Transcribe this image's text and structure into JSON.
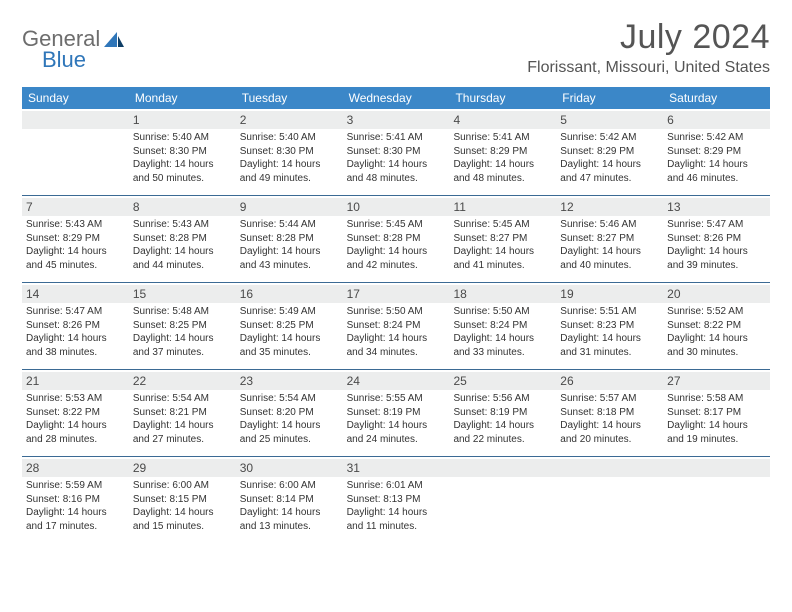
{
  "brand": {
    "part1": "General",
    "part2": "Blue"
  },
  "title": "July 2024",
  "location": "Florissant, Missouri, United States",
  "colors": {
    "header_bg": "#3b87c8",
    "header_text": "#ffffff",
    "band_bg": "#eceded",
    "rule": "#3b6a94",
    "logo_gray": "#6d6d6d",
    "logo_blue": "#2f76b9",
    "text": "#333333",
    "background": "#ffffff"
  },
  "font": {
    "family": "Arial",
    "title_size_pt": 26,
    "location_size_pt": 12,
    "header_size_pt": 9,
    "cell_size_pt": 7.5
  },
  "day_headers": [
    "Sunday",
    "Monday",
    "Tuesday",
    "Wednesday",
    "Thursday",
    "Friday",
    "Saturday"
  ],
  "weeks": [
    [
      {
        "n": "",
        "sunrise": "",
        "sunset": "",
        "daylight": ""
      },
      {
        "n": "1",
        "sunrise": "Sunrise: 5:40 AM",
        "sunset": "Sunset: 8:30 PM",
        "daylight": "Daylight: 14 hours and 50 minutes."
      },
      {
        "n": "2",
        "sunrise": "Sunrise: 5:40 AM",
        "sunset": "Sunset: 8:30 PM",
        "daylight": "Daylight: 14 hours and 49 minutes."
      },
      {
        "n": "3",
        "sunrise": "Sunrise: 5:41 AM",
        "sunset": "Sunset: 8:30 PM",
        "daylight": "Daylight: 14 hours and 48 minutes."
      },
      {
        "n": "4",
        "sunrise": "Sunrise: 5:41 AM",
        "sunset": "Sunset: 8:29 PM",
        "daylight": "Daylight: 14 hours and 48 minutes."
      },
      {
        "n": "5",
        "sunrise": "Sunrise: 5:42 AM",
        "sunset": "Sunset: 8:29 PM",
        "daylight": "Daylight: 14 hours and 47 minutes."
      },
      {
        "n": "6",
        "sunrise": "Sunrise: 5:42 AM",
        "sunset": "Sunset: 8:29 PM",
        "daylight": "Daylight: 14 hours and 46 minutes."
      }
    ],
    [
      {
        "n": "7",
        "sunrise": "Sunrise: 5:43 AM",
        "sunset": "Sunset: 8:29 PM",
        "daylight": "Daylight: 14 hours and 45 minutes."
      },
      {
        "n": "8",
        "sunrise": "Sunrise: 5:43 AM",
        "sunset": "Sunset: 8:28 PM",
        "daylight": "Daylight: 14 hours and 44 minutes."
      },
      {
        "n": "9",
        "sunrise": "Sunrise: 5:44 AM",
        "sunset": "Sunset: 8:28 PM",
        "daylight": "Daylight: 14 hours and 43 minutes."
      },
      {
        "n": "10",
        "sunrise": "Sunrise: 5:45 AM",
        "sunset": "Sunset: 8:28 PM",
        "daylight": "Daylight: 14 hours and 42 minutes."
      },
      {
        "n": "11",
        "sunrise": "Sunrise: 5:45 AM",
        "sunset": "Sunset: 8:27 PM",
        "daylight": "Daylight: 14 hours and 41 minutes."
      },
      {
        "n": "12",
        "sunrise": "Sunrise: 5:46 AM",
        "sunset": "Sunset: 8:27 PM",
        "daylight": "Daylight: 14 hours and 40 minutes."
      },
      {
        "n": "13",
        "sunrise": "Sunrise: 5:47 AM",
        "sunset": "Sunset: 8:26 PM",
        "daylight": "Daylight: 14 hours and 39 minutes."
      }
    ],
    [
      {
        "n": "14",
        "sunrise": "Sunrise: 5:47 AM",
        "sunset": "Sunset: 8:26 PM",
        "daylight": "Daylight: 14 hours and 38 minutes."
      },
      {
        "n": "15",
        "sunrise": "Sunrise: 5:48 AM",
        "sunset": "Sunset: 8:25 PM",
        "daylight": "Daylight: 14 hours and 37 minutes."
      },
      {
        "n": "16",
        "sunrise": "Sunrise: 5:49 AM",
        "sunset": "Sunset: 8:25 PM",
        "daylight": "Daylight: 14 hours and 35 minutes."
      },
      {
        "n": "17",
        "sunrise": "Sunrise: 5:50 AM",
        "sunset": "Sunset: 8:24 PM",
        "daylight": "Daylight: 14 hours and 34 minutes."
      },
      {
        "n": "18",
        "sunrise": "Sunrise: 5:50 AM",
        "sunset": "Sunset: 8:24 PM",
        "daylight": "Daylight: 14 hours and 33 minutes."
      },
      {
        "n": "19",
        "sunrise": "Sunrise: 5:51 AM",
        "sunset": "Sunset: 8:23 PM",
        "daylight": "Daylight: 14 hours and 31 minutes."
      },
      {
        "n": "20",
        "sunrise": "Sunrise: 5:52 AM",
        "sunset": "Sunset: 8:22 PM",
        "daylight": "Daylight: 14 hours and 30 minutes."
      }
    ],
    [
      {
        "n": "21",
        "sunrise": "Sunrise: 5:53 AM",
        "sunset": "Sunset: 8:22 PM",
        "daylight": "Daylight: 14 hours and 28 minutes."
      },
      {
        "n": "22",
        "sunrise": "Sunrise: 5:54 AM",
        "sunset": "Sunset: 8:21 PM",
        "daylight": "Daylight: 14 hours and 27 minutes."
      },
      {
        "n": "23",
        "sunrise": "Sunrise: 5:54 AM",
        "sunset": "Sunset: 8:20 PM",
        "daylight": "Daylight: 14 hours and 25 minutes."
      },
      {
        "n": "24",
        "sunrise": "Sunrise: 5:55 AM",
        "sunset": "Sunset: 8:19 PM",
        "daylight": "Daylight: 14 hours and 24 minutes."
      },
      {
        "n": "25",
        "sunrise": "Sunrise: 5:56 AM",
        "sunset": "Sunset: 8:19 PM",
        "daylight": "Daylight: 14 hours and 22 minutes."
      },
      {
        "n": "26",
        "sunrise": "Sunrise: 5:57 AM",
        "sunset": "Sunset: 8:18 PM",
        "daylight": "Daylight: 14 hours and 20 minutes."
      },
      {
        "n": "27",
        "sunrise": "Sunrise: 5:58 AM",
        "sunset": "Sunset: 8:17 PM",
        "daylight": "Daylight: 14 hours and 19 minutes."
      }
    ],
    [
      {
        "n": "28",
        "sunrise": "Sunrise: 5:59 AM",
        "sunset": "Sunset: 8:16 PM",
        "daylight": "Daylight: 14 hours and 17 minutes."
      },
      {
        "n": "29",
        "sunrise": "Sunrise: 6:00 AM",
        "sunset": "Sunset: 8:15 PM",
        "daylight": "Daylight: 14 hours and 15 minutes."
      },
      {
        "n": "30",
        "sunrise": "Sunrise: 6:00 AM",
        "sunset": "Sunset: 8:14 PM",
        "daylight": "Daylight: 14 hours and 13 minutes."
      },
      {
        "n": "31",
        "sunrise": "Sunrise: 6:01 AM",
        "sunset": "Sunset: 8:13 PM",
        "daylight": "Daylight: 14 hours and 11 minutes."
      },
      {
        "n": "",
        "sunrise": "",
        "sunset": "",
        "daylight": ""
      },
      {
        "n": "",
        "sunrise": "",
        "sunset": "",
        "daylight": ""
      },
      {
        "n": "",
        "sunrise": "",
        "sunset": "",
        "daylight": ""
      }
    ]
  ]
}
